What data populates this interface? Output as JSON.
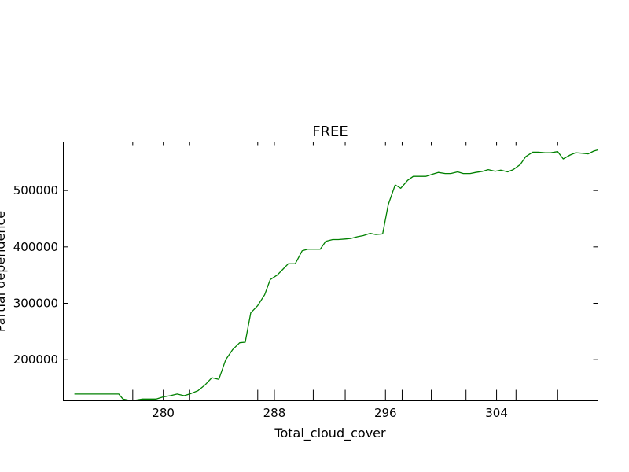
{
  "chart_data": {
    "type": "line",
    "title": "FREE",
    "xlabel": "Total_cloud_cover",
    "ylabel": "Partial dependence",
    "xlim": [
      272.8,
      311.3
    ],
    "ylim": [
      127000,
      586000
    ],
    "x_ticks": [
      {
        "value": 280,
        "label": "280"
      },
      {
        "value": 288,
        "label": "288"
      },
      {
        "value": 296,
        "label": "296"
      },
      {
        "value": 304,
        "label": "304"
      }
    ],
    "x_tick_marks": [
      277.8,
      280,
      281.9,
      286.8,
      288,
      290.8,
      293.1,
      296,
      297.2,
      299.3,
      301.8,
      304,
      305.4,
      308.4
    ],
    "y_ticks": [
      {
        "value": 200000,
        "label": "200000"
      },
      {
        "value": 300000,
        "label": "300000"
      },
      {
        "value": 400000,
        "label": "400000"
      },
      {
        "value": 500000,
        "label": "500000"
      }
    ],
    "grid": false,
    "series": [
      {
        "color": "#008000",
        "x": [
          273.6,
          274.1,
          274.7,
          275.2,
          275.8,
          276.3,
          276.8,
          277.1,
          277.5,
          278.0,
          278.5,
          279.0,
          279.5,
          280.0,
          280.5,
          281.0,
          281.5,
          282.0,
          282.5,
          283.0,
          283.5,
          284.0,
          284.5,
          285.0,
          285.5,
          285.9,
          286.3,
          286.8,
          287.3,
          287.7,
          288.2,
          288.6,
          289.0,
          289.5,
          290.0,
          290.4,
          290.8,
          291.3,
          291.7,
          292.2,
          292.6,
          293.1,
          293.5,
          294.0,
          294.4,
          294.9,
          295.3,
          295.8,
          296.2,
          296.7,
          297.1,
          297.6,
          298.0,
          298.5,
          298.9,
          299.4,
          299.8,
          300.3,
          300.7,
          301.2,
          301.6,
          302.1,
          302.5,
          303.0,
          303.4,
          303.9,
          304.3,
          304.8,
          305.2,
          305.7,
          306.1,
          306.6,
          307.0,
          307.5,
          307.9,
          308.4,
          308.8,
          309.3,
          309.7,
          310.2,
          310.6,
          311.0,
          311.3
        ],
        "values": [
          139000,
          139000,
          139000,
          139000,
          139000,
          139000,
          139000,
          130000,
          128000,
          128000,
          130000,
          130000,
          130000,
          134000,
          136000,
          139000,
          136000,
          140000,
          145000,
          155000,
          168000,
          165000,
          200000,
          218000,
          230000,
          231000,
          283000,
          296000,
          315000,
          342000,
          350000,
          360000,
          370000,
          370000,
          393000,
          396000,
          396000,
          396000,
          410000,
          413000,
          413000,
          414000,
          415000,
          418000,
          420000,
          424000,
          422000,
          423000,
          475000,
          510000,
          504000,
          518000,
          525000,
          525000,
          525000,
          529000,
          532000,
          530000,
          530000,
          533000,
          530000,
          530000,
          532000,
          534000,
          537000,
          534000,
          536000,
          533000,
          537000,
          546000,
          560000,
          568000,
          568000,
          567000,
          567000,
          569000,
          556000,
          563000,
          567000,
          566000,
          565000,
          570000,
          572000
        ]
      }
    ]
  }
}
